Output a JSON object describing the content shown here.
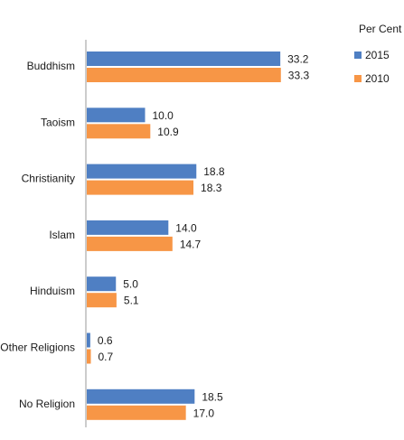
{
  "chart_data": {
    "type": "bar",
    "orientation": "horizontal",
    "categories": [
      "Buddhism",
      "Taoism",
      "Christianity",
      "Islam",
      "Hinduism",
      "Other Religions",
      "No Religion"
    ],
    "series": [
      {
        "name": "2015",
        "color": "#4f7fc3",
        "values": [
          33.2,
          10.0,
          18.8,
          14.0,
          5.0,
          0.6,
          18.5
        ],
        "labels": [
          "33.2",
          "10.0",
          "18.8",
          "14.0",
          "5.0",
          "0.6",
          "18.5"
        ]
      },
      {
        "name": "2010",
        "color": "#f79646",
        "values": [
          33.3,
          10.9,
          18.3,
          14.7,
          5.1,
          0.7,
          17.0
        ],
        "labels": [
          "33.3",
          "10.9",
          "18.3",
          "14.7",
          "5.1",
          "0.7",
          "17.0"
        ]
      }
    ],
    "legend_title": "Per Cent",
    "legend_position": "top-right",
    "xlim": [
      0,
      40
    ],
    "grid": false
  }
}
